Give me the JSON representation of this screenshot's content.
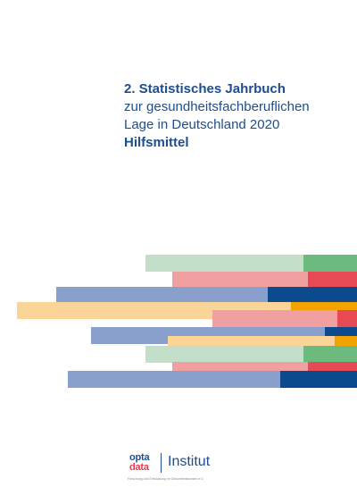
{
  "title": {
    "line1": "2. Statistisches Jahrbuch",
    "line2": "zur gesundheitsfachberuflichen",
    "line3": "Lage in Deutschland 2020",
    "line4": "Hilfsmittel"
  },
  "logo": {
    "brand_top": "opta",
    "brand_bottom": "data",
    "name": "Institut",
    "tagline": "Forschung und Entwicklung im Gesundheitswesen e.V."
  },
  "colors": {
    "title": "#1e4e8c",
    "light_green": "#c3dfca",
    "green": "#6cba7d",
    "light_red": "#f0a0a0",
    "red": "#e84a55",
    "light_blue": "#8aa0cc",
    "navy": "#0b4a8c",
    "light_yellow": "#fbd597",
    "orange": "#f2a300"
  }
}
